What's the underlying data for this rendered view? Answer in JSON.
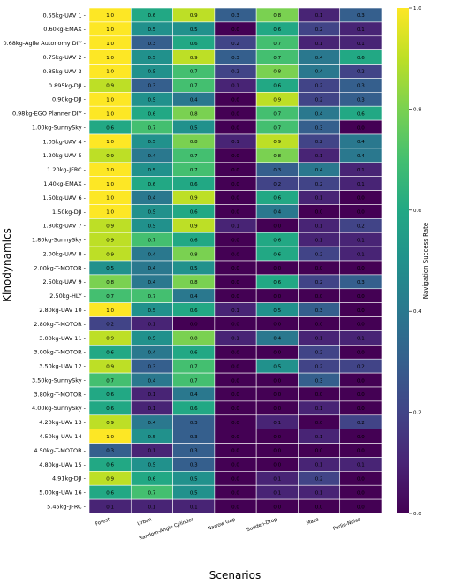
{
  "chart_data": {
    "type": "heatmap",
    "title": "",
    "xlabel": "Scenarios",
    "ylabel": "Kinodynamics",
    "colorbar_label": "Navigation Success Rate",
    "colormap": "viridis",
    "vmin": 0.0,
    "vmax": 1.0,
    "colorbar_ticks": [
      "0.0",
      "0.2",
      "0.4",
      "0.6",
      "0.8",
      "1.0"
    ],
    "x_categories": [
      "Forest",
      "Urban",
      "Random-Angle Cylinder",
      "Narrow Gap",
      "Sudden-Drop",
      "Maze",
      "Perlin-Noise"
    ],
    "y_categories": [
      "0.55kg-UAV 1",
      "0.60kg-EMAX",
      "0.68kg-Agile Autonomy DIY",
      "0.75kg-UAV 2",
      "0.85kg-UAV 3",
      "0.895kg-DJI",
      "0.90kg-DJI",
      "0.98kg-EGO Planner DIY",
      "1.00kg-SunnySky",
      "1.05kg-UAV 4",
      "1.20kg-UAV 5",
      "1.20kg-JFRC",
      "1.40kg-EMAX",
      "1.50kg-UAV 6",
      "1.50kg-DJI",
      "1.80kg-UAV 7",
      "1.80kg-SunnySky",
      "2.00kg-UAV 8",
      "2.00kg-T-MOTOR",
      "2.50kg-UAV 9",
      "2.50kg-HLY",
      "2.80kg-UAV 10",
      "2.80kg-T-MOTOR",
      "3.00kg-UAV 11",
      "3.00kg-T-MOTOR",
      "3.50kg-UAV 12",
      "3.50kg-SunnySky",
      "3.80kg-T-MOTOR",
      "4.00kg-SunnySky",
      "4.20kg-UAV 13",
      "4.50kg-UAV 14",
      "4.50kg-T-MOTOR",
      "4.80kg-UAV 15",
      "4.91kg-DJI",
      "5.00kg-UAV 16",
      "5.45kg-JFRC"
    ],
    "values": [
      [
        1.0,
        0.6,
        0.9,
        0.3,
        0.8,
        0.1,
        0.3
      ],
      [
        1.0,
        0.5,
        0.5,
        0.0,
        0.6,
        0.2,
        0.1
      ],
      [
        1.0,
        0.3,
        0.6,
        0.2,
        0.7,
        0.1,
        0.1
      ],
      [
        1.0,
        0.5,
        0.9,
        0.3,
        0.7,
        0.4,
        0.6
      ],
      [
        1.0,
        0.5,
        0.7,
        0.2,
        0.8,
        0.4,
        0.2
      ],
      [
        0.9,
        0.3,
        0.7,
        0.1,
        0.6,
        0.2,
        0.3
      ],
      [
        1.0,
        0.5,
        0.4,
        0.0,
        0.9,
        0.2,
        0.3
      ],
      [
        1.0,
        0.6,
        0.8,
        0.0,
        0.7,
        0.4,
        0.6
      ],
      [
        0.6,
        0.7,
        0.5,
        0.0,
        0.7,
        0.3,
        0.0
      ],
      [
        1.0,
        0.5,
        0.8,
        0.1,
        0.9,
        0.2,
        0.4
      ],
      [
        0.9,
        0.4,
        0.7,
        0.0,
        0.8,
        0.1,
        0.4
      ],
      [
        1.0,
        0.5,
        0.7,
        0.0,
        0.3,
        0.4,
        0.1
      ],
      [
        1.0,
        0.6,
        0.6,
        0.0,
        0.2,
        0.2,
        0.1
      ],
      [
        1.0,
        0.4,
        0.9,
        0.0,
        0.6,
        0.1,
        0.0
      ],
      [
        1.0,
        0.5,
        0.6,
        0.0,
        0.4,
        0.0,
        0.0
      ],
      [
        0.9,
        0.5,
        0.9,
        0.1,
        0.0,
        0.1,
        0.2
      ],
      [
        0.9,
        0.7,
        0.6,
        0.0,
        0.6,
        0.1,
        0.1
      ],
      [
        0.9,
        0.4,
        0.8,
        0.0,
        0.6,
        0.2,
        0.1
      ],
      [
        0.5,
        0.4,
        0.5,
        0.0,
        0.0,
        0.0,
        0.0
      ],
      [
        0.8,
        0.4,
        0.8,
        0.0,
        0.6,
        0.2,
        0.3
      ],
      [
        0.7,
        0.7,
        0.4,
        0.0,
        0.0,
        0.0,
        0.0
      ],
      [
        1.0,
        0.5,
        0.6,
        0.1,
        0.5,
        0.3,
        0.0
      ],
      [
        0.2,
        0.1,
        0.0,
        0.0,
        0.0,
        0.0,
        0.0
      ],
      [
        0.9,
        0.5,
        0.8,
        0.1,
        0.4,
        0.1,
        0.1
      ],
      [
        0.6,
        0.4,
        0.6,
        0.0,
        0.0,
        0.2,
        0.0
      ],
      [
        0.9,
        0.3,
        0.7,
        0.0,
        0.5,
        0.2,
        0.2
      ],
      [
        0.7,
        0.4,
        0.7,
        0.0,
        0.0,
        0.3,
        0.0
      ],
      [
        0.6,
        0.1,
        0.4,
        0.0,
        0.0,
        0.0,
        0.0
      ],
      [
        0.6,
        0.1,
        0.6,
        0.0,
        0.0,
        0.1,
        0.0
      ],
      [
        0.9,
        0.4,
        0.3,
        0.0,
        0.1,
        0.0,
        0.2
      ],
      [
        1.0,
        0.5,
        0.3,
        0.0,
        0.0,
        0.1,
        0.0
      ],
      [
        0.3,
        0.1,
        0.3,
        0.0,
        0.0,
        0.0,
        0.0
      ],
      [
        0.6,
        0.5,
        0.3,
        0.0,
        0.0,
        0.1,
        0.1
      ],
      [
        0.9,
        0.6,
        0.5,
        0.0,
        0.1,
        0.2,
        0.0
      ],
      [
        0.6,
        0.7,
        0.5,
        0.0,
        0.1,
        0.1,
        0.0
      ],
      [
        0.1,
        0.1,
        0.1,
        0.0,
        0.0,
        0.0,
        0.0
      ]
    ]
  }
}
